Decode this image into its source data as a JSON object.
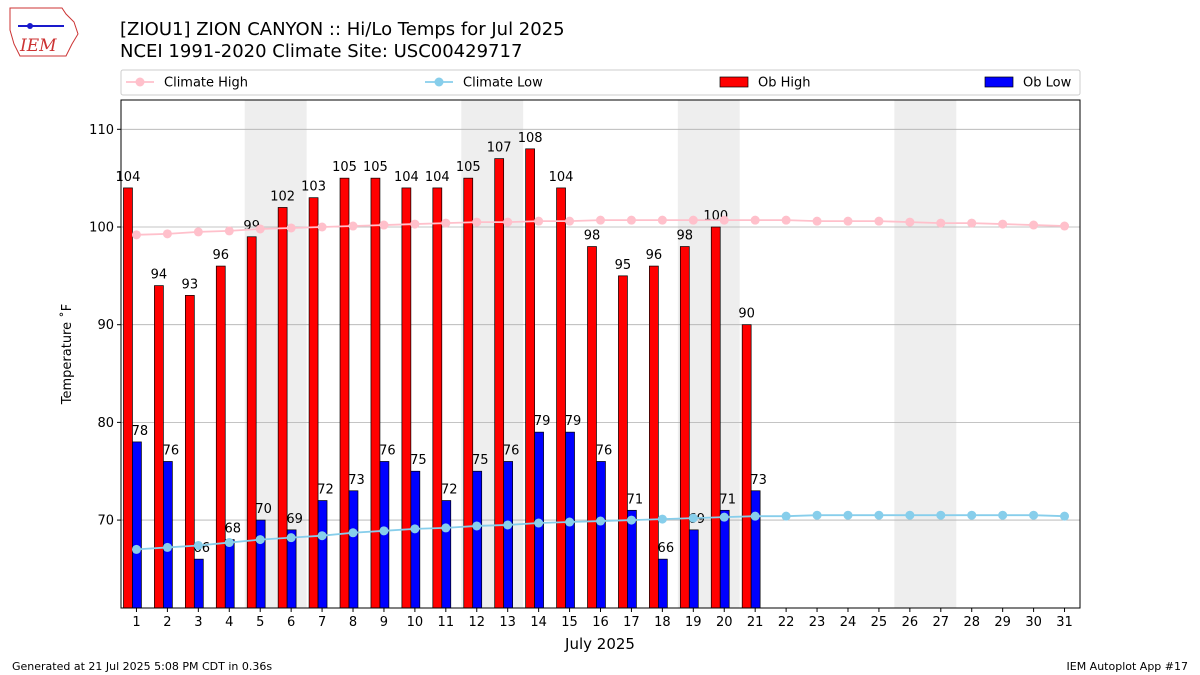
{
  "chart_data": {
    "type": "bar",
    "title": "[ZIOU1] ZION CANYON :: Hi/Lo Temps for Jul 2025",
    "subtitle": "NCEI 1991-2020 Climate Site: USC00429717",
    "xlabel": "July 2025",
    "ylabel": "Temperature ˚F",
    "footer_left": "Generated at 21 Jul 2025 5:08 PM CDT in 0.36s",
    "footer_right": "IEM Autoplot App #17",
    "logo_text": "IEM",
    "x": [
      1,
      2,
      3,
      4,
      5,
      6,
      7,
      8,
      9,
      10,
      11,
      12,
      13,
      14,
      15,
      16,
      17,
      18,
      19,
      20,
      21,
      22,
      23,
      24,
      25,
      26,
      27,
      28,
      29,
      30,
      31
    ],
    "xlim": [
      0.5,
      31.5
    ],
    "xticks": [
      1,
      2,
      3,
      4,
      5,
      6,
      7,
      8,
      9,
      10,
      11,
      12,
      13,
      14,
      15,
      16,
      17,
      18,
      19,
      20,
      21,
      22,
      23,
      24,
      25,
      26,
      27,
      28,
      29,
      30,
      31
    ],
    "ylim": [
      61,
      113
    ],
    "yticks": [
      70,
      80,
      90,
      100,
      110
    ],
    "grid": "y",
    "legend": "top",
    "weekend_bands": [
      [
        4.5,
        6.5
      ],
      [
        11.5,
        13.5
      ],
      [
        18.5,
        20.5
      ],
      [
        25.5,
        27.5
      ]
    ],
    "series": [
      {
        "name": "Climate High",
        "color": "#ffc0cb",
        "kind": "line",
        "values": [
          99.2,
          99.3,
          99.5,
          99.6,
          99.8,
          99.9,
          100.0,
          100.1,
          100.2,
          100.3,
          100.4,
          100.5,
          100.5,
          100.6,
          100.6,
          100.7,
          100.7,
          100.7,
          100.7,
          100.7,
          100.7,
          100.7,
          100.6,
          100.6,
          100.6,
          100.5,
          100.4,
          100.4,
          100.3,
          100.2,
          100.1
        ]
      },
      {
        "name": "Climate Low",
        "color": "#87ceeb",
        "kind": "line",
        "values": [
          67.0,
          67.2,
          67.4,
          67.7,
          68.0,
          68.2,
          68.4,
          68.7,
          68.9,
          69.1,
          69.2,
          69.4,
          69.5,
          69.7,
          69.8,
          69.9,
          70.0,
          70.1,
          70.2,
          70.3,
          70.4,
          70.4,
          70.5,
          70.5,
          70.5,
          70.5,
          70.5,
          70.5,
          70.5,
          70.5,
          70.4
        ]
      },
      {
        "name": "Ob High",
        "color": "#ff0000",
        "kind": "bar",
        "values": [
          104,
          94,
          93,
          96,
          99,
          102,
          103,
          105,
          105,
          104,
          104,
          105,
          107,
          108,
          104,
          98,
          95,
          96,
          98,
          100,
          90,
          null,
          null,
          null,
          null,
          null,
          null,
          null,
          null,
          null,
          null
        ]
      },
      {
        "name": "Ob Low",
        "color": "#0000ff",
        "kind": "bar",
        "values": [
          78,
          76,
          66,
          68,
          70,
          69,
          72,
          73,
          76,
          75,
          72,
          75,
          76,
          79,
          79,
          76,
          71,
          66,
          69,
          71,
          73,
          null,
          null,
          null,
          null,
          null,
          null,
          null,
          null,
          null,
          null
        ]
      }
    ]
  }
}
